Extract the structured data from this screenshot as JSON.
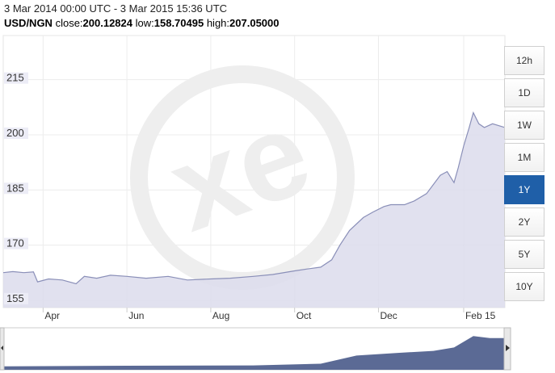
{
  "header": {
    "date_range": "3 Mar 2014 00:00 UTC - 3 Mar 2015 15:36 UTC",
    "pair": "USD/NGN",
    "close_label": "close:",
    "close_value": "200.12824",
    "low_label": "low:",
    "low_value": "158.70495",
    "high_label": "high:",
    "high_value": "207.05000"
  },
  "range_buttons": [
    {
      "label": "12h",
      "active": false
    },
    {
      "label": "1D",
      "active": false
    },
    {
      "label": "1W",
      "active": false
    },
    {
      "label": "1M",
      "active": false
    },
    {
      "label": "1Y",
      "active": true
    },
    {
      "label": "2Y",
      "active": false
    },
    {
      "label": "5Y",
      "active": false
    },
    {
      "label": "10Y",
      "active": false
    }
  ],
  "colors": {
    "line": "#8a8fb8",
    "area": "#dcdcec",
    "nav_fill": "#5b6a95",
    "active_button": "#1f5fa8",
    "watermark": "#eeeeee"
  },
  "watermark_text": "xe",
  "chart_data": {
    "type": "area",
    "title": "",
    "ylim": [
      153,
      227
    ],
    "y_ticks": [
      155,
      170,
      185,
      200,
      215
    ],
    "x_ticks": [
      {
        "label": "Apr",
        "date": "2014-04-01"
      },
      {
        "label": "Jun",
        "date": "2014-06-01"
      },
      {
        "label": "Aug",
        "date": "2014-08-01"
      },
      {
        "label": "Oct",
        "date": "2014-10-01"
      },
      {
        "label": "Dec",
        "date": "2014-12-01"
      },
      {
        "label": "Feb 15",
        "date": "2015-02-01"
      }
    ],
    "grid": true,
    "series": [
      {
        "x": [
          "2014-03-03",
          "2014-03-10",
          "2014-03-18",
          "2014-03-25",
          "2014-03-28",
          "2014-04-05",
          "2014-04-15",
          "2014-04-25",
          "2014-05-01",
          "2014-05-10",
          "2014-05-20",
          "2014-06-01",
          "2014-06-15",
          "2014-07-01",
          "2014-07-15",
          "2014-08-01",
          "2014-08-15",
          "2014-09-01",
          "2014-09-15",
          "2014-10-01",
          "2014-10-10",
          "2014-10-20",
          "2014-10-28",
          "2014-11-03",
          "2014-11-10",
          "2014-11-20",
          "2014-11-27",
          "2014-12-05",
          "2014-12-10",
          "2014-12-20",
          "2014-12-27",
          "2015-01-05",
          "2015-01-15",
          "2015-01-20",
          "2015-01-25",
          "2015-01-28",
          "2015-02-01",
          "2015-02-05",
          "2015-02-08",
          "2015-02-12",
          "2015-02-16",
          "2015-02-22",
          "2015-03-03"
        ],
        "values": [
          162.5,
          162.8,
          162.5,
          162.7,
          160.0,
          160.8,
          160.5,
          159.5,
          161.5,
          161.0,
          161.8,
          161.5,
          161.0,
          161.5,
          160.5,
          160.8,
          161.0,
          161.5,
          162.0,
          163.0,
          163.5,
          164.0,
          166.0,
          170.0,
          174.0,
          177.5,
          179.0,
          180.5,
          181.0,
          181.0,
          182.0,
          184.0,
          189.0,
          190.0,
          187.0,
          191.0,
          197.0,
          202.0,
          206.0,
          203.0,
          202.0,
          203.0,
          202.0
        ]
      }
    ],
    "navigator": {
      "x": [
        "2014-03-03",
        "2014-06-01",
        "2014-09-01",
        "2014-10-20",
        "2014-11-15",
        "2014-12-15",
        "2015-01-10",
        "2015-01-25",
        "2015-02-08",
        "2015-02-20",
        "2015-03-03"
      ],
      "values": [
        160,
        161,
        161.5,
        164,
        176,
        180,
        183,
        188,
        205,
        202,
        202
      ]
    }
  }
}
